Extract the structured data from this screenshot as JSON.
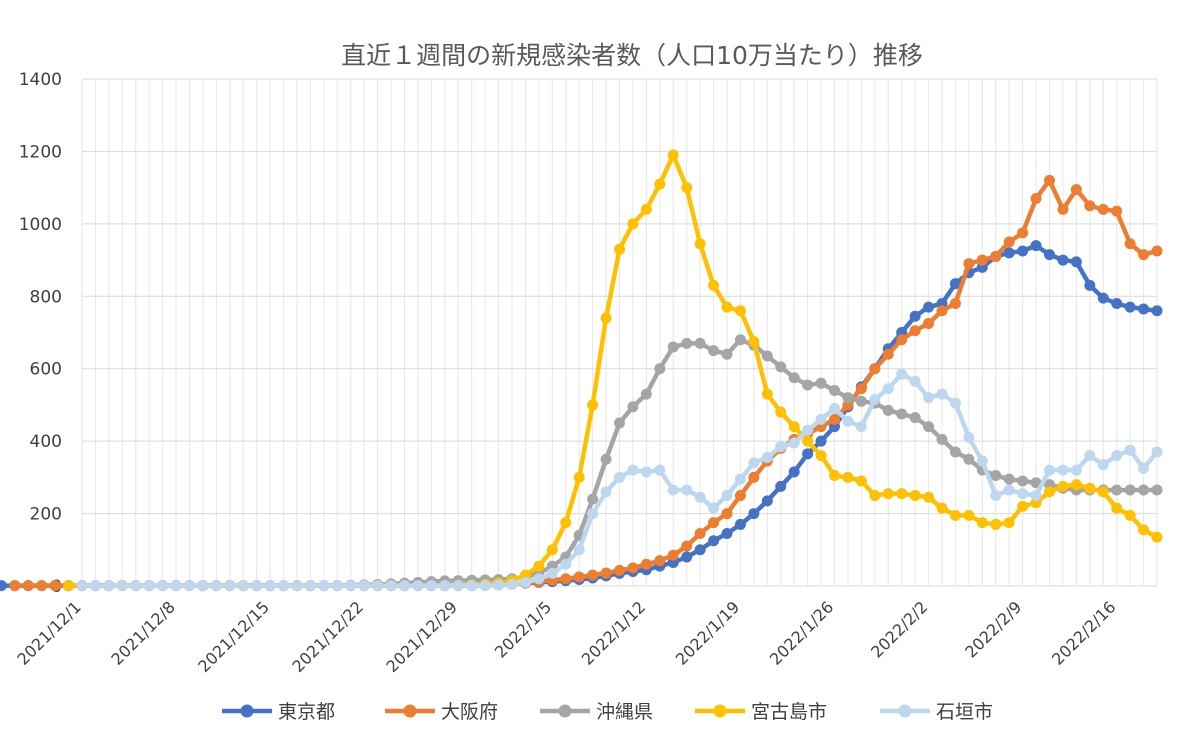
{
  "chart_data": {
    "type": "line",
    "title": "直近１週間の新規感染者数（人口10万当たり）推移",
    "xlabel": "",
    "ylabel": "",
    "ylim": [
      0,
      1400
    ],
    "yticks": [
      "0",
      "200",
      "400",
      "600",
      "800",
      "1000",
      "1200",
      "1400"
    ],
    "x_start": "2021/12/1",
    "x_end": "2022/2/19",
    "x_tick_labels": [
      "2021/12/1",
      "2021/12/8",
      "2021/12/15",
      "2021/12/22",
      "2021/12/29",
      "2022/1/5",
      "2022/1/12",
      "2022/1/19",
      "2022/1/26",
      "2022/2/2",
      "2022/2/9",
      "2022/2/16"
    ],
    "grid": true,
    "legend": "bottom",
    "series": [
      {
        "name": "東京都",
        "color": "#4472C4",
        "values": [
          1,
          1,
          1,
          1,
          1,
          1,
          1,
          1,
          1,
          1,
          1,
          1,
          1,
          1,
          1,
          1,
          1,
          1,
          1,
          1,
          1,
          1,
          1,
          1,
          1,
          1,
          1,
          1,
          1,
          1,
          1,
          1,
          1,
          1,
          1,
          1,
          2,
          3,
          5,
          8,
          10,
          12,
          15,
          18,
          22,
          28,
          35,
          40,
          45,
          55,
          65,
          80,
          100,
          125,
          145,
          170,
          200,
          235,
          275,
          315,
          365,
          400,
          440,
          495,
          550,
          600,
          655,
          700,
          745,
          770,
          780,
          835,
          865,
          880,
          910,
          920,
          925,
          940,
          915,
          900,
          895,
          830,
          795,
          780,
          770,
          765,
          760
        ]
      },
      {
        "name": "大阪府",
        "color": "#ED7D31",
        "values": [
          1,
          1,
          1,
          1,
          1,
          1,
          1,
          1,
          1,
          1,
          1,
          1,
          1,
          1,
          1,
          1,
          1,
          1,
          1,
          1,
          1,
          1,
          1,
          1,
          1,
          1,
          1,
          1,
          1,
          1,
          1,
          1,
          1,
          1,
          1,
          2,
          3,
          5,
          8,
          12,
          16,
          20,
          25,
          30,
          36,
          43,
          50,
          60,
          70,
          85,
          110,
          145,
          175,
          200,
          250,
          300,
          345,
          380,
          405,
          420,
          440,
          460,
          500,
          545,
          600,
          640,
          680,
          705,
          725,
          760,
          780,
          890,
          900,
          910,
          950,
          975,
          1070,
          1120,
          1040,
          1095,
          1050,
          1040,
          1035,
          945,
          915,
          925
        ]
      },
      {
        "name": "沖縄県",
        "color": "#A5A5A5",
        "values": [
          1,
          1,
          1,
          1,
          1,
          1,
          1,
          1,
          1,
          1,
          1,
          1,
          1,
          1,
          1,
          1,
          1,
          1,
          1,
          1,
          2,
          3,
          4,
          6,
          8,
          10,
          12,
          14,
          15,
          16,
          17,
          18,
          20,
          25,
          35,
          55,
          80,
          140,
          240,
          350,
          450,
          495,
          530,
          600,
          660,
          670,
          670,
          650,
          640,
          680,
          665,
          635,
          605,
          575,
          555,
          560,
          540,
          520,
          510,
          505,
          485,
          475,
          465,
          440,
          405,
          370,
          350,
          320,
          305,
          295,
          290,
          285,
          280,
          270,
          265,
          265,
          265,
          265,
          265,
          265,
          265
        ]
      },
      {
        "name": "宮古島市",
        "color": "#FFC000",
        "values": [
          1,
          1,
          1,
          1,
          1,
          1,
          1,
          1,
          1,
          1,
          1,
          1,
          1,
          1,
          1,
          1,
          1,
          1,
          1,
          1,
          1,
          1,
          1,
          1,
          1,
          1,
          1,
          1,
          1,
          2,
          3,
          5,
          8,
          15,
          30,
          55,
          100,
          175,
          300,
          500,
          740,
          930,
          1000,
          1040,
          1110,
          1190,
          1100,
          945,
          830,
          770,
          760,
          675,
          530,
          480,
          440,
          400,
          360,
          305,
          300,
          290,
          250,
          255,
          255,
          250,
          245,
          215,
          195,
          195,
          175,
          170,
          175,
          220,
          230,
          260,
          275,
          280,
          270,
          260,
          215,
          195,
          155,
          135
        ]
      },
      {
        "name": "石垣市",
        "color": "#BDD7EE",
        "values": [
          1,
          1,
          1,
          1,
          1,
          1,
          1,
          1,
          1,
          1,
          1,
          1,
          1,
          1,
          1,
          1,
          1,
          1,
          1,
          1,
          1,
          1,
          1,
          1,
          1,
          1,
          1,
          1,
          1,
          1,
          1,
          2,
          4,
          10,
          20,
          35,
          60,
          100,
          200,
          260,
          300,
          320,
          315,
          320,
          265,
          265,
          245,
          215,
          250,
          295,
          340,
          355,
          385,
          395,
          430,
          460,
          490,
          455,
          440,
          515,
          545,
          585,
          565,
          520,
          530,
          505,
          410,
          345,
          250,
          265,
          255,
          250,
          320,
          320,
          320,
          360,
          335,
          360,
          375,
          325,
          370
        ]
      }
    ]
  }
}
